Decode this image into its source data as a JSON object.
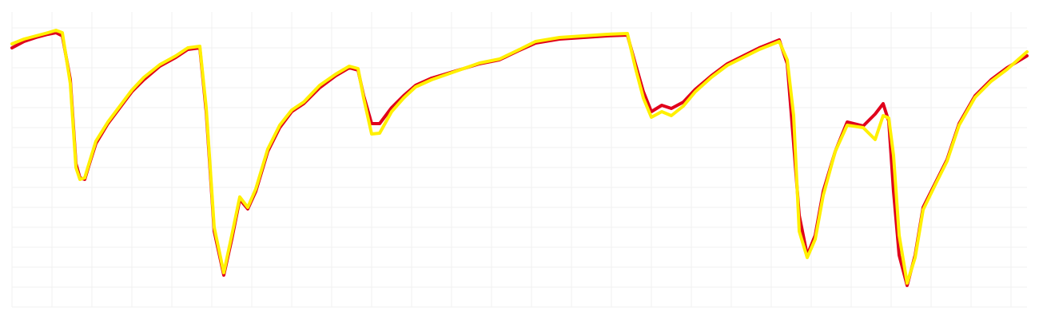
{
  "chart_data": {
    "type": "line",
    "x": [
      0,
      15,
      30,
      45,
      55,
      63,
      73,
      80,
      85,
      91,
      97,
      105,
      120,
      135,
      150,
      165,
      185,
      205,
      220,
      235,
      243,
      253,
      265,
      275,
      285,
      295,
      305,
      320,
      335,
      350,
      365,
      385,
      405,
      422,
      433,
      440,
      450,
      460,
      475,
      490,
      505,
      525,
      545,
      565,
      585,
      610,
      635,
      655,
      685,
      715,
      745,
      770,
      780,
      790,
      800,
      813,
      825,
      840,
      855,
      875,
      895,
      915,
      935,
      960,
      970,
      978,
      985,
      995,
      1005,
      1015,
      1030,
      1045,
      1065,
      1080,
      1090,
      1097,
      1103,
      1110,
      1120,
      1130,
      1140,
      1155,
      1170,
      1185,
      1205,
      1225,
      1245,
      1270
    ],
    "series": [
      {
        "color": "#e0001b",
        "values": [
          325,
          333,
          338,
          342,
          344,
          340,
          285,
          180,
          162,
          160,
          180,
          205,
          230,
          250,
          270,
          285,
          302,
          313,
          323,
          325,
          245,
          95,
          40,
          85,
          135,
          123,
          145,
          195,
          225,
          245,
          255,
          275,
          290,
          300,
          297,
          265,
          230,
          230,
          250,
          265,
          278,
          287,
          293,
          299,
          305,
          310,
          322,
          331,
          336,
          338,
          340,
          341,
          305,
          270,
          245,
          253,
          249,
          257,
          273,
          290,
          305,
          315,
          325,
          335,
          305,
          205,
          115,
          65,
          90,
          145,
          195,
          232,
          227,
          242,
          255,
          233,
          145,
          65,
          27,
          65,
          125,
          155,
          185,
          230,
          265,
          285,
          300,
          315
        ]
      },
      {
        "color": "#fff000",
        "values": [
          330,
          336,
          340,
          344,
          347,
          344,
          280,
          175,
          160,
          162,
          182,
          208,
          232,
          252,
          272,
          288,
          304,
          315,
          325,
          327,
          250,
          100,
          43,
          90,
          138,
          125,
          148,
          198,
          228,
          247,
          257,
          278,
          292,
          302,
          299,
          262,
          217,
          218,
          245,
          262,
          276,
          285,
          292,
          299,
          306,
          311,
          323,
          333,
          338,
          340,
          342,
          343,
          300,
          262,
          238,
          245,
          240,
          252,
          270,
          288,
          303,
          313,
          323,
          333,
          310,
          240,
          95,
          62,
          85,
          140,
          195,
          228,
          225,
          210,
          240,
          237,
          190,
          90,
          30,
          62,
          122,
          153,
          183,
          228,
          263,
          283,
          298,
          320
        ]
      }
    ],
    "xlim": [
      0,
      1270
    ],
    "ylim": [
      0,
      370
    ],
    "xticks": [
      0,
      50,
      100,
      150,
      200,
      250,
      300,
      350,
      400,
      450,
      500,
      550,
      600,
      650,
      700,
      750,
      800,
      850,
      900,
      950,
      1000,
      1050,
      1100,
      1150,
      1200,
      1250
    ],
    "yticks": [
      0,
      25,
      50,
      75,
      100,
      125,
      150,
      175,
      200,
      225,
      250,
      275,
      300,
      325,
      350
    ],
    "grid": true
  }
}
